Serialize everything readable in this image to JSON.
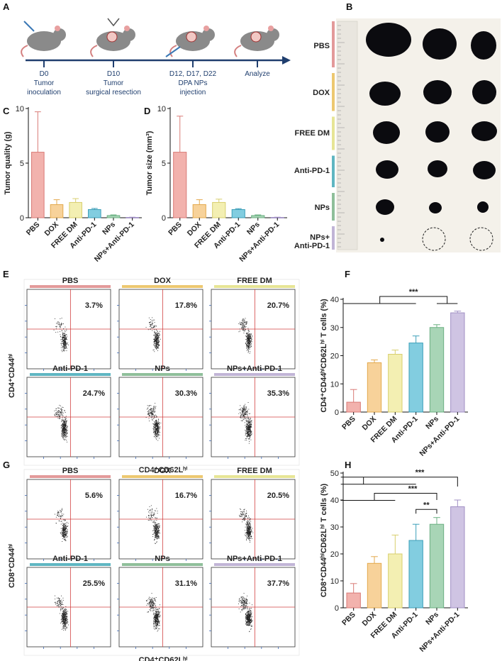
{
  "panel_letters": {
    "a": "A",
    "b": "B",
    "c": "C",
    "d": "D",
    "e": "E",
    "f": "F",
    "g": "G",
    "h": "H"
  },
  "timeline": [
    {
      "day": "D0",
      "text1": "Tumor",
      "text2": "inoculation"
    },
    {
      "day": "D10",
      "text1": "Tumor",
      "text2": "surgical resection"
    },
    {
      "day": "D12, D17, D22",
      "text1": "DPA NPs",
      "text2": "injection"
    },
    {
      "day": "Analyze",
      "text1": "",
      "text2": ""
    }
  ],
  "photo": {
    "rows": [
      "PBS",
      "DOX",
      "FREE DM",
      "Anti-PD-1",
      "NPs",
      "NPs+"
    ],
    "row_extra": "Anti-PD-1",
    "row_colors": [
      "#e39a9a",
      "#edc870",
      "#e7e595",
      "#5fb6c2",
      "#8fbf9a",
      "#c1b4d6"
    ]
  },
  "colors": {
    "groups": [
      "#f2b2ad",
      "#f7d29a",
      "#f3efb2",
      "#82cde0",
      "#a8d5b6",
      "#cfc4e3"
    ],
    "edges": [
      "#d97a76",
      "#e3a94d",
      "#d8cf6e",
      "#3c9fb9",
      "#6bb082",
      "#a190c4"
    ],
    "flow_bars": [
      "#e39a9a",
      "#edc870",
      "#e7e595",
      "#5fb6c2",
      "#8fbf9a",
      "#c1b4d6"
    ]
  },
  "flow_e": {
    "ylabel": "CD4⁺CD44ʰⁱ",
    "xlabel": "CD4⁺CD62Lʰⁱ",
    "panels": [
      {
        "label": "PBS",
        "pct": "3.7%"
      },
      {
        "label": "DOX",
        "pct": "17.8%"
      },
      {
        "label": "FREE DM",
        "pct": "20.7%"
      },
      {
        "label": "Anti-PD-1",
        "pct": "24.7%"
      },
      {
        "label": "NPs",
        "pct": "30.3%"
      },
      {
        "label": "NPs+Anti-PD-1",
        "pct": "35.3%"
      }
    ]
  },
  "flow_g": {
    "ylabel": "CD8⁺CD44ʰⁱ",
    "xlabel": "CD4⁺CD62Lʰⁱ",
    "panels": [
      {
        "label": "PBS",
        "pct": "5.6%"
      },
      {
        "label": "DOX",
        "pct": "16.7%"
      },
      {
        "label": "FREE DM",
        "pct": "20.5%"
      },
      {
        "label": "Anti-PD-1",
        "pct": "25.5%"
      },
      {
        "label": "NPs",
        "pct": "31.1%"
      },
      {
        "label": "NPs+Anti-PD-1",
        "pct": "37.7%"
      }
    ]
  },
  "chart_data": [
    {
      "id": "C",
      "type": "bar",
      "title": "",
      "categories": [
        "PBS",
        "DOX",
        "FREE DM",
        "Anti-PD-1",
        "NPs",
        "NPs+Anti-PD-1"
      ],
      "values": [
        6.0,
        1.2,
        1.4,
        0.75,
        0.2,
        0.03
      ],
      "errors": [
        3.7,
        0.45,
        0.35,
        0.1,
        0.06,
        0.02
      ],
      "ylabel": "Tumor quality (g)",
      "xlabel": "",
      "ylim": [
        0,
        10
      ],
      "yticks": [
        0,
        5,
        10
      ],
      "significance": []
    },
    {
      "id": "D",
      "type": "bar",
      "title": "",
      "categories": [
        "PBS",
        "DOX",
        "FREE DM",
        "Anti-PD-1",
        "NPs",
        "NPs+Anti-PD-1"
      ],
      "values": [
        6.0,
        1.2,
        1.4,
        0.75,
        0.2,
        0.03
      ],
      "errors": [
        3.3,
        0.45,
        0.3,
        0.08,
        0.06,
        0.02
      ],
      "ylabel": "Tumor size (mm³)",
      "xlabel": "",
      "ylim": [
        0,
        10
      ],
      "yticks": [
        0,
        5,
        10
      ],
      "significance": []
    },
    {
      "id": "F",
      "type": "bar",
      "title": "",
      "categories": [
        "PBS",
        "DOX",
        "FREE DM",
        "Anti-PD-1",
        "NPs",
        "NPs+Anti-PD-1"
      ],
      "values": [
        3.5,
        17.5,
        20.5,
        24.5,
        30.0,
        35.2
      ],
      "errors": [
        4.5,
        1.0,
        1.5,
        2.5,
        1.0,
        0.6
      ],
      "ylabel": "CD4⁺CD44ʰⁱCD62Lʰⁱ T cells (%)",
      "xlabel": "",
      "ylim": [
        0,
        40
      ],
      "yticks": [
        0,
        10,
        20,
        30,
        40
      ],
      "significance": [
        {
          "label": "***",
          "left_groups": [
            0,
            1,
            2,
            3
          ],
          "right_groups": [
            4,
            5
          ],
          "value": 40
        }
      ]
    },
    {
      "id": "H",
      "type": "bar",
      "title": "",
      "categories": [
        "PBS",
        "DOX",
        "FREE DM",
        "Anti-PD-1",
        "NPs",
        "NPs+Anti-PD-1"
      ],
      "values": [
        5.5,
        16.5,
        20.0,
        25.0,
        31.0,
        37.5
      ],
      "errors": [
        3.5,
        2.5,
        7.0,
        6.0,
        2.5,
        2.5
      ],
      "ylabel": "CD8⁺CD44ʰⁱCD62Lʰⁱ T cells (%)",
      "xlabel": "",
      "ylim": [
        0,
        50
      ],
      "yticks": [
        0,
        10,
        20,
        30,
        40,
        50
      ],
      "significance": [
        {
          "label": "***",
          "from": 0,
          "to": 5,
          "level": 48.5,
          "drop_from": 45
        },
        {
          "label": "***",
          "from": 0,
          "to": 4,
          "level": 42.5,
          "drop_from": 40
        },
        {
          "label": "**",
          "from": 3,
          "to": 4,
          "level": 36.5
        }
      ]
    }
  ]
}
